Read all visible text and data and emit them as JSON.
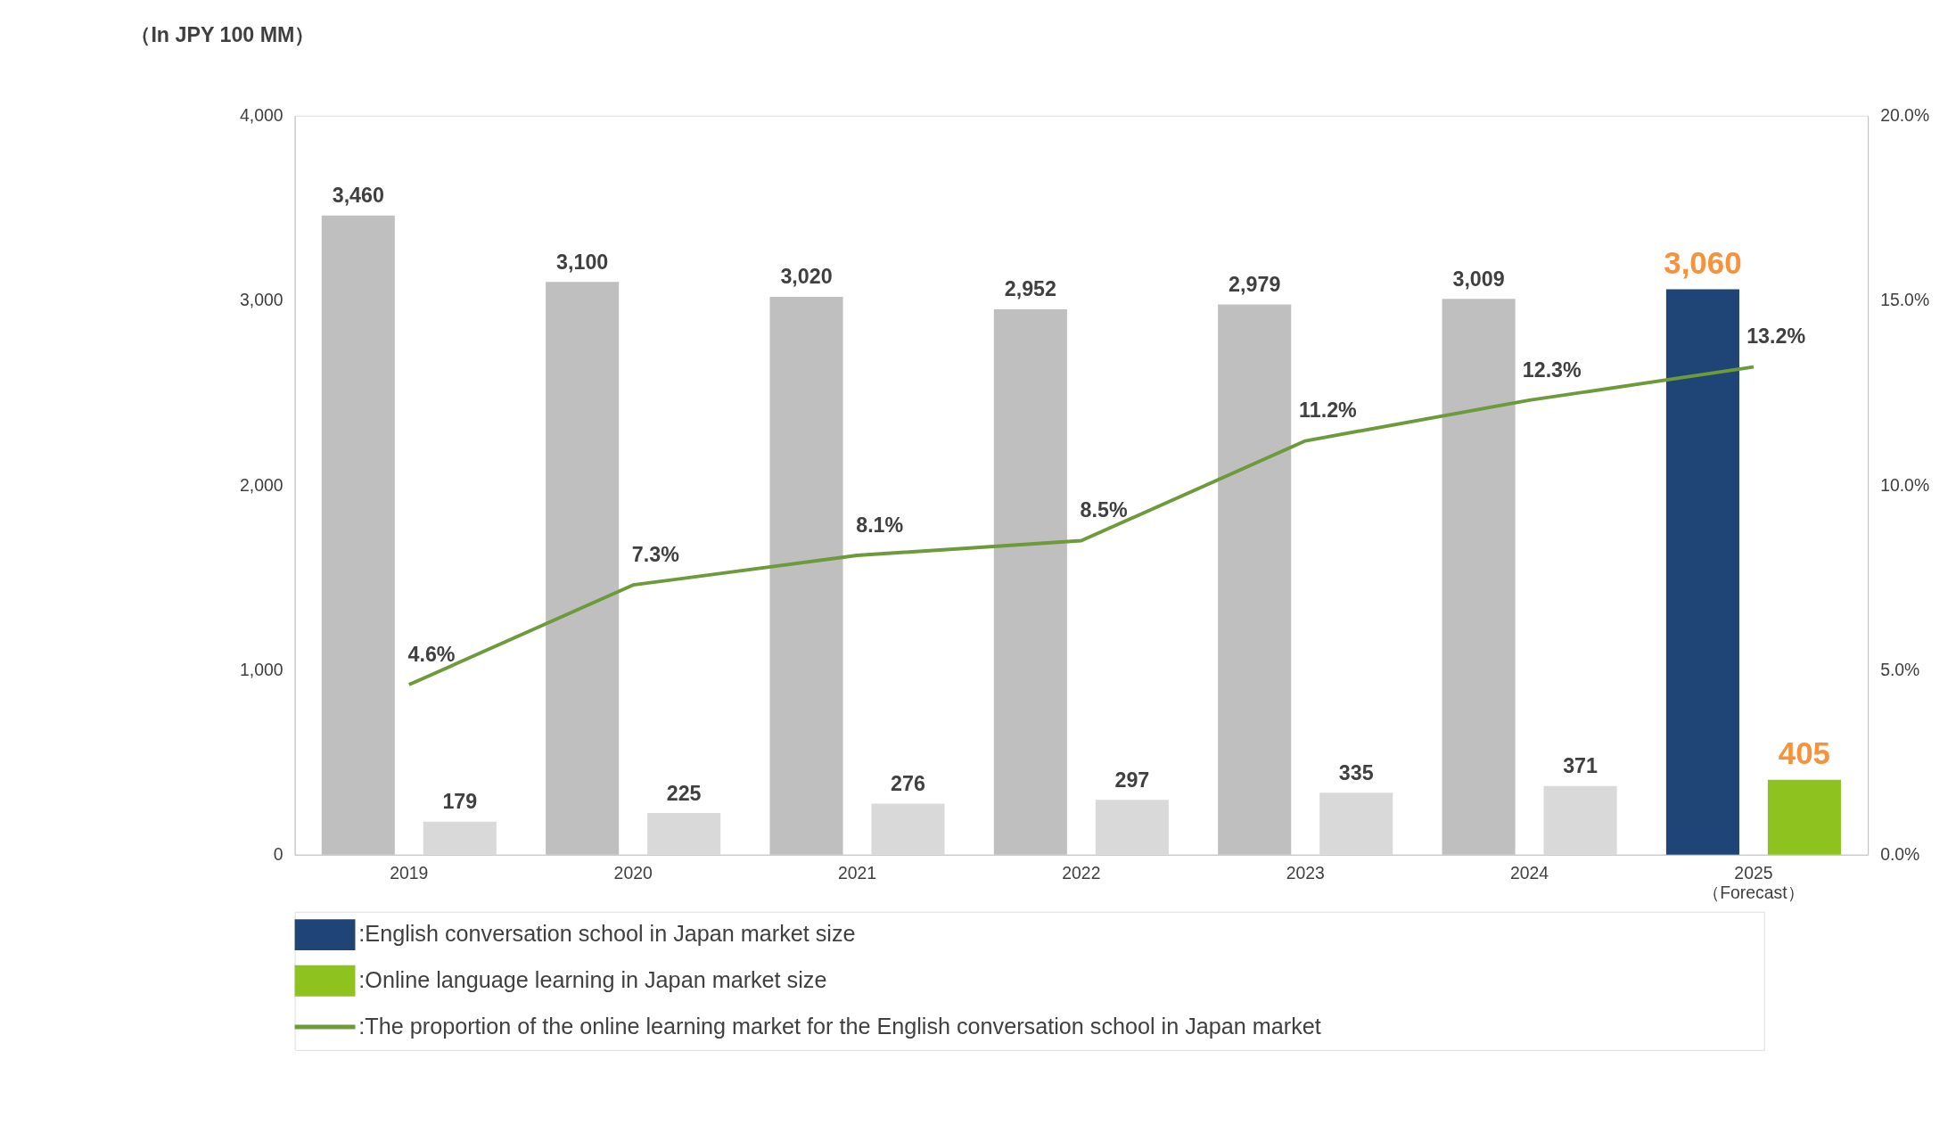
{
  "chart_data": {
    "type": "bar",
    "title": "（In JPY 100 MM）",
    "categories": [
      "2019",
      "2020",
      "2021",
      "2022",
      "2023",
      "2024",
      "2025\n（Forecast）"
    ],
    "series": [
      {
        "name": ":English conversation school in Japan market size",
        "color": "#1f4576",
        "colors": [
          "#bfbfbf",
          "#bfbfbf",
          "#bfbfbf",
          "#bfbfbf",
          "#bfbfbf",
          "#bfbfbf",
          "#1f4576"
        ],
        "values": [
          3460,
          3100,
          3020,
          2952,
          2979,
          3009,
          3060
        ],
        "value_labels": [
          "3,460",
          "3,100",
          "3,020",
          "2,952",
          "2,979",
          "3,009",
          "3,060"
        ]
      },
      {
        "name": ":Online language learning in Japan market size",
        "color": "#8dc21f",
        "colors": [
          "#d9d9d9",
          "#d9d9d9",
          "#d9d9d9",
          "#d9d9d9",
          "#d9d9d9",
          "#d9d9d9",
          "#8dc21f"
        ],
        "values": [
          179,
          225,
          276,
          297,
          335,
          371,
          405
        ],
        "value_labels": [
          "179",
          "225",
          "276",
          "297",
          "335",
          "371",
          "405"
        ]
      },
      {
        "name": ":The proportion of the online learning market for the English conversation school in Japan market",
        "type": "line",
        "axis": "y2",
        "color": "#6d9a3a",
        "values": [
          4.6,
          7.3,
          8.1,
          8.5,
          11.2,
          12.3,
          13.2
        ],
        "value_labels": [
          "4.6%",
          "7.3%",
          "8.1%",
          "8.5%",
          "11.2%",
          "12.3%",
          "13.2%"
        ]
      }
    ],
    "ylim": [
      0,
      4000
    ],
    "yticks": [
      {
        "value": 0,
        "label": "0"
      },
      {
        "value": 1000,
        "label": "1,000"
      },
      {
        "value": 2000,
        "label": "2,000"
      },
      {
        "value": 3000,
        "label": "3,000"
      },
      {
        "value": 4000,
        "label": "4,000"
      }
    ],
    "y2lim": [
      0,
      20
    ],
    "y2ticks": [
      {
        "value": 0,
        "label": "0.0%"
      },
      {
        "value": 5,
        "label": "5.0%"
      },
      {
        "value": 10,
        "label": "10.0%"
      },
      {
        "value": 15,
        "label": "15.0%"
      },
      {
        "value": 20,
        "label": "20.0%"
      }
    ],
    "grid": false,
    "legend": "bottom left"
  }
}
